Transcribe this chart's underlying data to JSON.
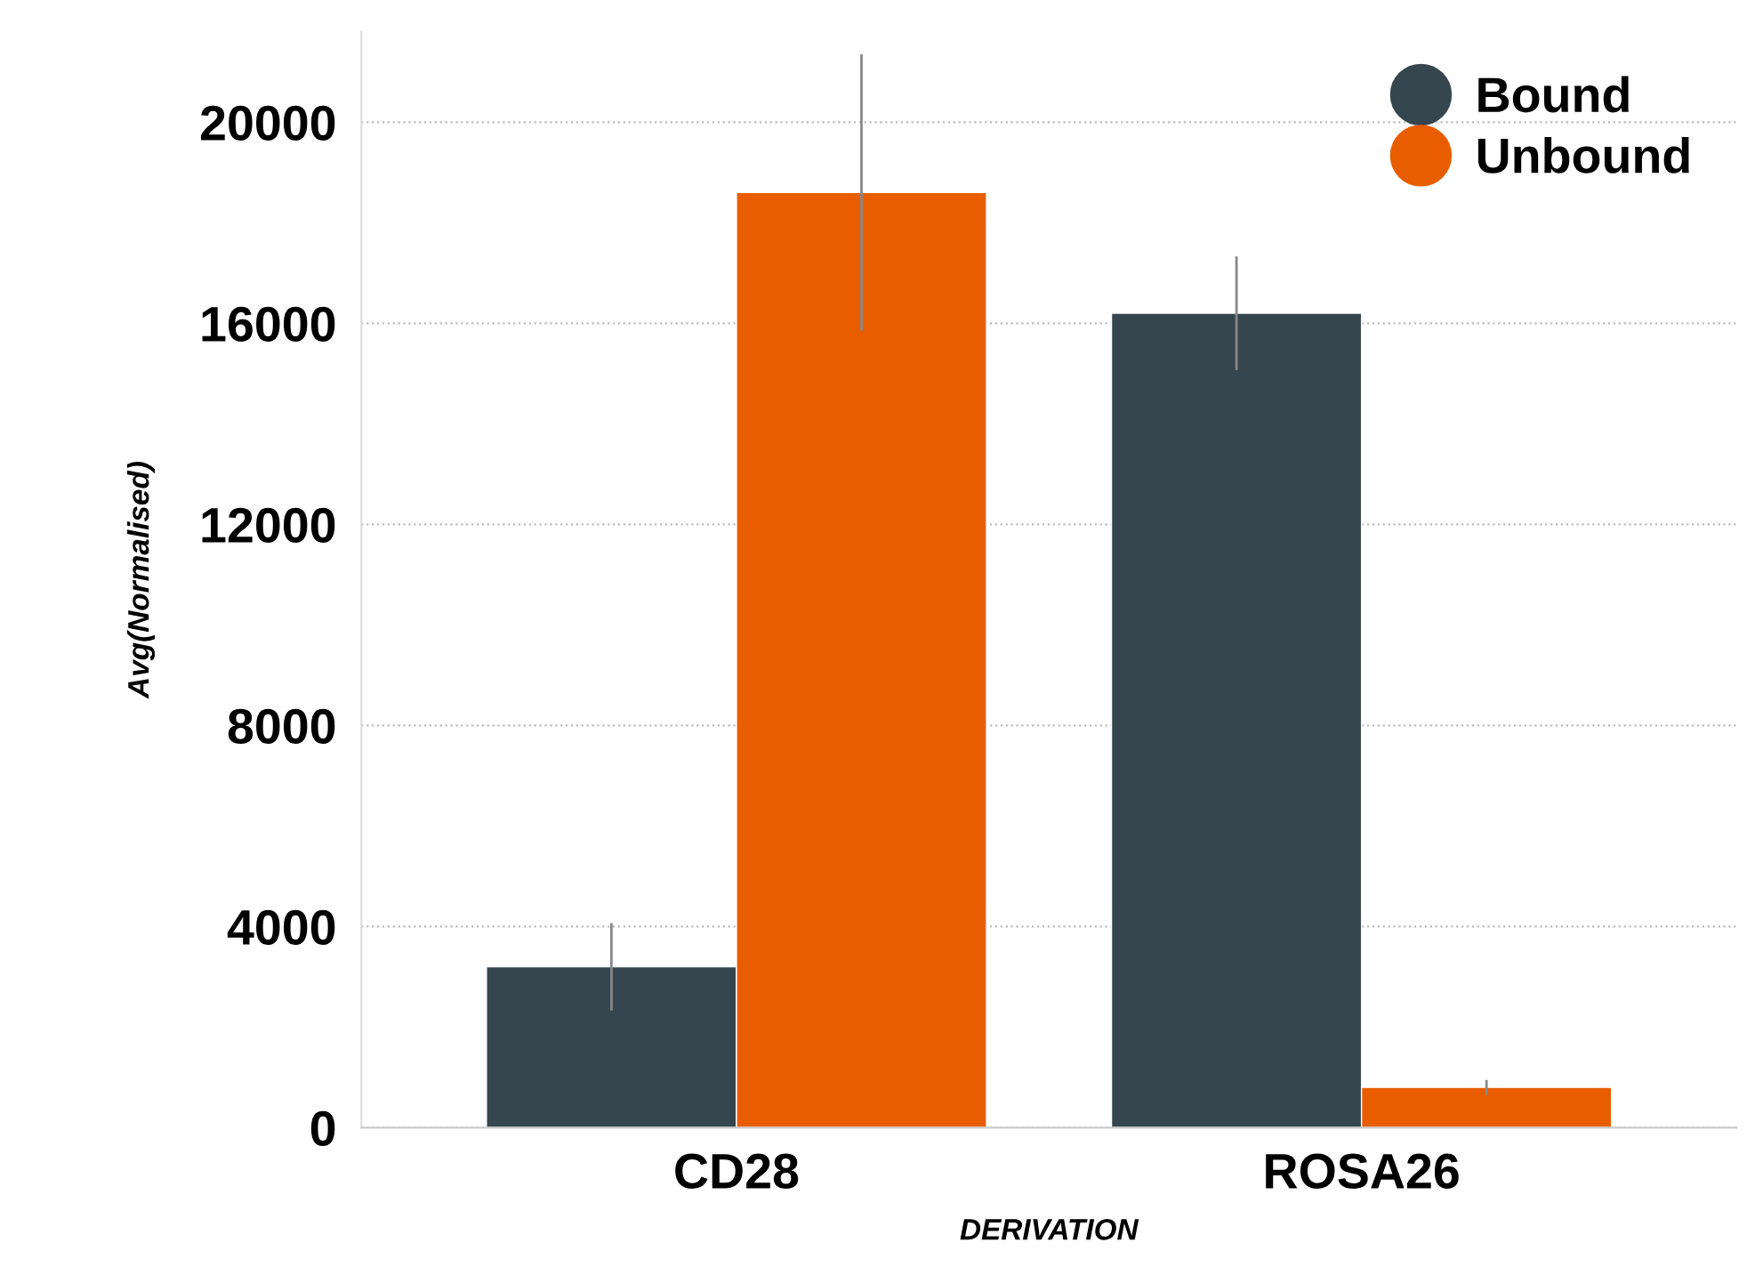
{
  "chart_data": {
    "type": "bar",
    "xlabel": "DERIVATION",
    "ylabel": "Avg(Normalised)",
    "categories": [
      "CD28",
      "ROSA26"
    ],
    "series": [
      {
        "name": "Bound",
        "color": "#36464e",
        "values": [
          3200,
          16200
        ],
        "errors": [
          870,
          1130
        ]
      },
      {
        "name": "Unbound",
        "color": "#e85d00",
        "values": [
          18600,
          800
        ],
        "errors": [
          2750,
          150
        ]
      }
    ],
    "ylim": [
      0,
      21800
    ],
    "yticks": [
      0,
      4000,
      8000,
      12000,
      16000,
      20000
    ],
    "grid": "y",
    "legend": "top right"
  }
}
